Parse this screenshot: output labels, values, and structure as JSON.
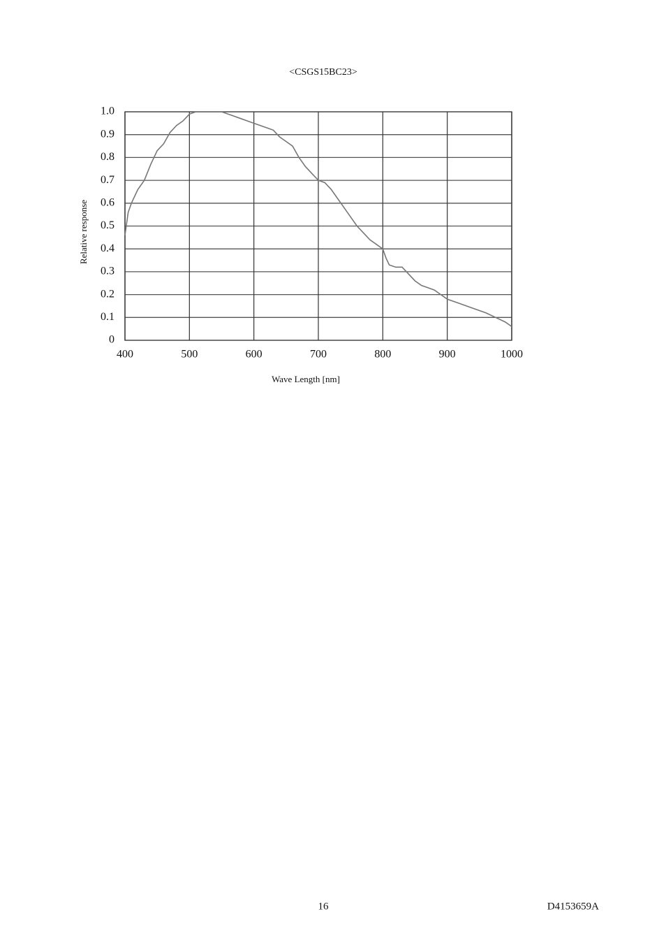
{
  "chart_data": {
    "type": "line",
    "title": "<CSGS15BC23>",
    "x_label": "Wave Length [nm]",
    "y_label": "Relative response",
    "x": [
      400,
      405,
      410,
      420,
      430,
      440,
      450,
      460,
      470,
      480,
      490,
      500,
      510,
      520,
      530,
      540,
      550,
      560,
      570,
      580,
      590,
      600,
      610,
      620,
      630,
      640,
      650,
      660,
      670,
      680,
      690,
      700,
      710,
      720,
      730,
      740,
      750,
      760,
      770,
      780,
      790,
      800,
      805,
      810,
      820,
      830,
      840,
      850,
      860,
      870,
      880,
      890,
      900,
      920,
      940,
      960,
      975,
      990,
      1000
    ],
    "values": [
      0.46,
      0.56,
      0.6,
      0.66,
      0.7,
      0.77,
      0.83,
      0.86,
      0.91,
      0.94,
      0.96,
      0.99,
      1.0,
      1.0,
      1.0,
      1.0,
      1.0,
      0.99,
      0.98,
      0.97,
      0.96,
      0.95,
      0.94,
      0.93,
      0.92,
      0.89,
      0.87,
      0.85,
      0.8,
      0.76,
      0.73,
      0.7,
      0.69,
      0.66,
      0.62,
      0.58,
      0.54,
      0.5,
      0.47,
      0.44,
      0.42,
      0.4,
      0.36,
      0.33,
      0.32,
      0.32,
      0.29,
      0.26,
      0.24,
      0.23,
      0.22,
      0.2,
      0.18,
      0.16,
      0.14,
      0.12,
      0.1,
      0.08,
      0.06
    ],
    "color": "#777777",
    "xlim": [
      400,
      1000
    ],
    "xticks": [
      400,
      500,
      600,
      700,
      800,
      900,
      1000
    ],
    "ylim": [
      0,
      1
    ],
    "yticks": [
      0,
      0.1,
      0.2,
      0.3,
      0.4,
      0.5,
      0.6,
      0.7,
      0.8,
      0.9,
      {
        "value": 1,
        "label": "1.0"
      }
    ],
    "grid": true
  },
  "footer": {
    "page": "16",
    "doc_id": "D4153659A"
  }
}
